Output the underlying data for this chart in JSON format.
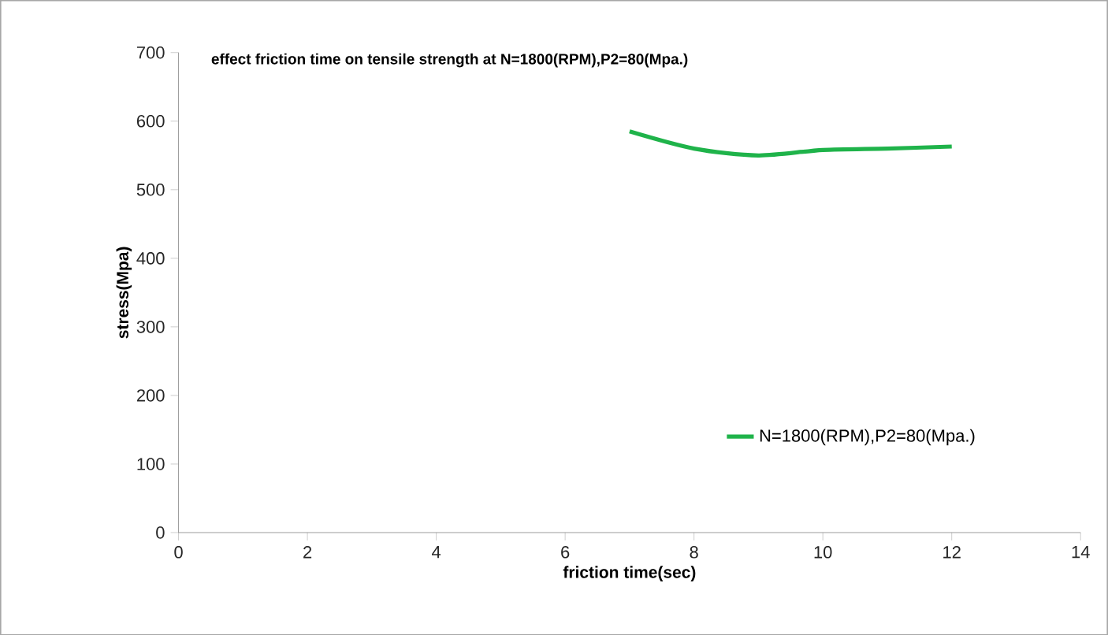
{
  "chart_data": {
    "type": "line",
    "title": "effect friction time on tensile strength at N=1800(RPM),P2=80(Mpa.)",
    "xlabel": "friction time(sec)",
    "ylabel": "stress(Mpa)",
    "x": [
      7,
      8,
      9,
      10,
      11,
      12
    ],
    "series": [
      {
        "name": "N=1800(RPM),P2=80(Mpa.)",
        "color": "#1fb34a",
        "values": [
          585,
          560,
          550,
          558,
          560,
          563
        ]
      }
    ],
    "xlim": [
      0,
      14
    ],
    "xticks": [
      0,
      2,
      4,
      6,
      8,
      10,
      12,
      14
    ],
    "ylim": [
      0,
      700
    ],
    "yticks": [
      0,
      100,
      200,
      300,
      400,
      500,
      600,
      700
    ],
    "grid": false,
    "legend": "bottom right",
    "marker": "none",
    "line_style": "solid"
  }
}
